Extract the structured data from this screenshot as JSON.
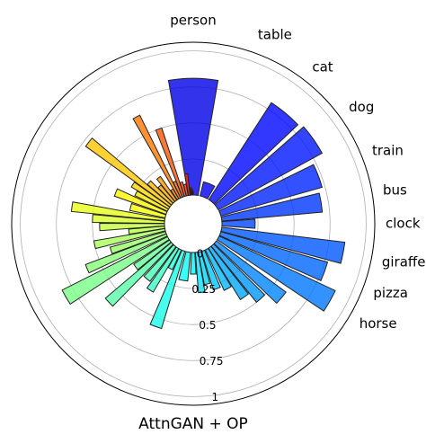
{
  "chart_data": {
    "type": "polar-bar",
    "title": "AttnGAN + OP",
    "colormap": "jet",
    "grid": true,
    "categories": [
      "person",
      "table",
      "cat",
      "dog",
      "train",
      "bus",
      "clock",
      "giraffe",
      "pizza",
      "horse",
      null,
      null,
      null,
      null,
      null,
      null,
      null,
      null,
      null,
      null,
      null,
      null,
      null,
      null,
      null,
      null,
      null,
      null,
      null,
      null,
      null,
      null,
      null,
      null,
      null,
      null,
      null,
      null,
      null,
      null,
      null,
      null,
      null,
      null,
      null,
      null,
      null,
      null,
      null,
      null,
      null,
      null
    ],
    "x": [
      0,
      21.8,
      39.7,
      55,
      69,
      80.6,
      90,
      101,
      110,
      119.5,
      130,
      138,
      145,
      152,
      160,
      167,
      173,
      180,
      190,
      200,
      207,
      213,
      220,
      227,
      233,
      240,
      247,
      252,
      258,
      263,
      268,
      273,
      278,
      285,
      292,
      298,
      303,
      308,
      313,
      318,
      323,
      328,
      332,
      336,
      340,
      344,
      348,
      352,
      356,
      358,
      359,
      360
    ],
    "values": [
      0.81,
      0.1,
      0.8,
      0.82,
      0.73,
      0.7,
      0.23,
      0.86,
      0.77,
      0.89,
      0.6,
      0.5,
      0.42,
      0.31,
      0.28,
      0.23,
      0.28,
      0.15,
      0.2,
      0.56,
      0.15,
      0.35,
      0.3,
      0.6,
      0.3,
      0.82,
      0.6,
      0.4,
      0.5,
      0.25,
      0.45,
      0.5,
      0.65,
      0.25,
      0.38,
      0.25,
      0.3,
      0.72,
      0.22,
      0.15,
      0.2,
      0.08,
      0.64,
      0.12,
      0.5,
      0.1,
      0.08,
      0.15,
      0.05,
      0.04,
      0.03,
      0.02
    ],
    "ylim": [
      0,
      1.06
    ],
    "yticks": [
      0.0,
      0.25,
      0.5,
      0.75,
      1.0
    ]
  }
}
